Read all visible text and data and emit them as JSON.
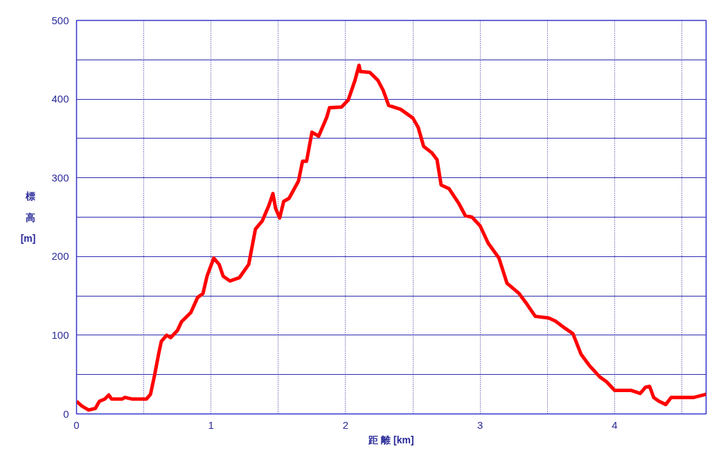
{
  "chart_data": {
    "type": "line",
    "xlabel": "距 離 [km]",
    "ylabel": "標高[m]",
    "xlim": [
      0,
      4.68
    ],
    "ylim": [
      0,
      500
    ],
    "xticks": [
      0,
      {
        "value": 0.5,
        "label": null
      },
      1,
      {
        "value": 1.5,
        "label": null
      },
      2,
      {
        "value": 2.5,
        "label": null
      },
      3,
      {
        "value": 3.5,
        "label": null
      },
      4,
      {
        "value": 4.5,
        "label": null
      }
    ],
    "yticks": [
      0,
      {
        "value": 50,
        "label": null
      },
      100,
      {
        "value": 150,
        "label": null
      },
      200,
      {
        "value": 250,
        "label": null
      },
      300,
      {
        "value": 350,
        "label": null
      },
      400,
      {
        "value": 450,
        "label": null
      },
      500
    ],
    "grid": true,
    "marker": "none",
    "line_style": "solid",
    "series": [
      {
        "color": "#ff0000",
        "x": [
          0,
          0.04,
          0.09,
          0.14,
          0.17,
          0.21,
          0.24,
          0.26,
          0.34,
          0.36,
          0.41,
          0.52,
          0.55,
          0.58,
          0.61,
          0.63,
          0.67,
          0.7,
          0.75,
          0.78,
          0.85,
          0.9,
          0.94,
          0.97,
          1.02,
          1.06,
          1.09,
          1.14,
          1.21,
          1.28,
          1.33,
          1.38,
          1.43,
          1.46,
          1.48,
          1.51,
          1.54,
          1.58,
          1.65,
          1.68,
          1.71,
          1.75,
          1.8,
          1.86,
          1.88,
          1.97,
          2.02,
          2.07,
          2.1,
          2.11,
          2.18,
          2.24,
          2.28,
          2.32,
          2.41,
          2.5,
          2.54,
          2.58,
          2.64,
          2.68,
          2.71,
          2.77,
          2.84,
          2.89,
          2.94,
          3.0,
          3.06,
          3.14,
          3.2,
          3.29,
          3.35,
          3.41,
          3.51,
          3.56,
          3.63,
          3.69,
          3.75,
          3.81,
          3.89,
          3.94,
          4.0,
          4.12,
          4.19,
          4.23,
          4.26,
          4.29,
          4.33,
          4.38,
          4.42,
          4.48,
          4.59,
          4.68
        ],
        "values": [
          16,
          10,
          5,
          7,
          16,
          19,
          24,
          19,
          19,
          21,
          19,
          19,
          25,
          49,
          76,
          92,
          100,
          97,
          106,
          117,
          129,
          148,
          153,
          175,
          198,
          190,
          175,
          169,
          173,
          190,
          235,
          245,
          265,
          280,
          261,
          249,
          270,
          274,
          296,
          321,
          321,
          358,
          353,
          377,
          389,
          390,
          399,
          424,
          443,
          435,
          434,
          424,
          411,
          392,
          387,
          376,
          364,
          340,
          332,
          323,
          291,
          286,
          268,
          252,
          250,
          239,
          217,
          198,
          166,
          153,
          139,
          124,
          122,
          118,
          109,
          102,
          76,
          62,
          47,
          41,
          30,
          30,
          26,
          34,
          35,
          21,
          16,
          12,
          21,
          21,
          21,
          25
        ]
      }
    ]
  }
}
